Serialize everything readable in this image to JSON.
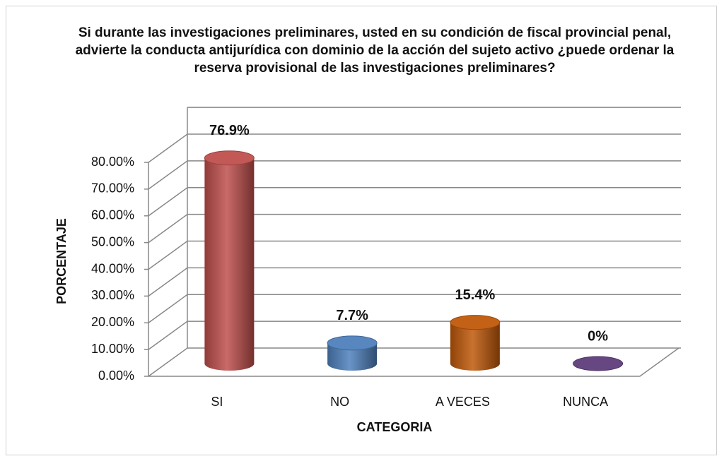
{
  "chart_data": {
    "type": "bar3d",
    "title": "Si durante las investigaciones preliminares, usted en su condición de fiscal provincial penal, advierte la conducta antijurídica con dominio de la acción del sujeto activo ¿puede ordenar la reserva provisional de las investigaciones preliminares?",
    "x_label": "CATEGORIA",
    "y_label": "PORCENTAJE",
    "categories": [
      "SI",
      "NO",
      "A VECES",
      "NUNCA"
    ],
    "values": [
      76.9,
      7.7,
      15.4,
      0
    ],
    "value_labels": [
      "76.9%",
      "7.7%",
      "15.4%",
      "0%"
    ],
    "colors": [
      "#c0504d",
      "#4f81bd",
      "#c0590a",
      "#5f3d7a"
    ],
    "ylim": [
      0,
      90
    ],
    "yticks": [
      {
        "value": 0,
        "label": "0.00%"
      },
      {
        "value": 10,
        "label": "10.00%"
      },
      {
        "value": 20,
        "label": "20.00%"
      },
      {
        "value": 30,
        "label": "30.00%"
      },
      {
        "value": 40,
        "label": "40.00%"
      },
      {
        "value": 50,
        "label": "50.00%"
      },
      {
        "value": 60,
        "label": "60.00%"
      },
      {
        "value": 70,
        "label": "70.00%"
      },
      {
        "value": 80,
        "label": "80.00%"
      }
    ],
    "grid": true
  }
}
